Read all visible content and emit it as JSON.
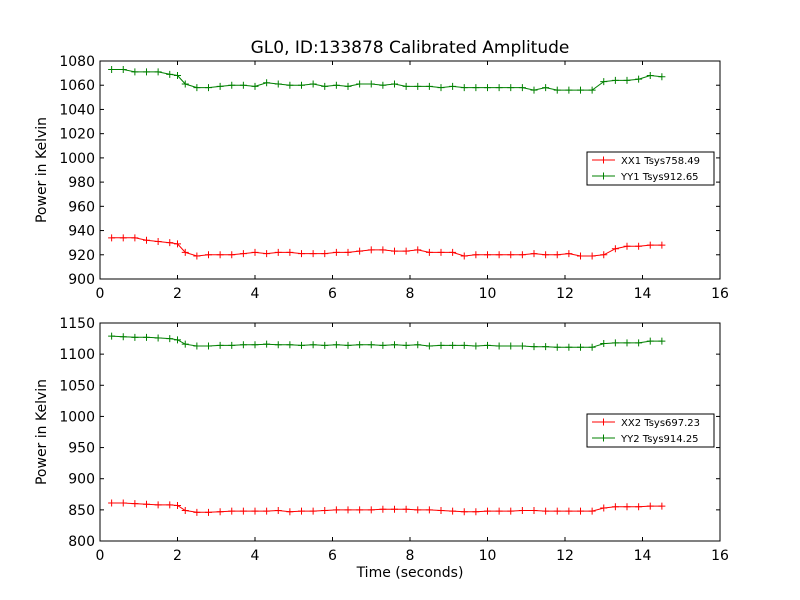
{
  "chart_data": [
    {
      "type": "line",
      "title": "GL0, ID:133878 Calibrated Amplitude",
      "xlabel": "",
      "ylabel": "Power in Kelvin",
      "xlim": [
        0,
        16
      ],
      "ylim": [
        900,
        1080
      ],
      "xticks": [
        "0",
        "2",
        "4",
        "6",
        "8",
        "10",
        "12",
        "14",
        "16"
      ],
      "yticks": [
        "900",
        "920",
        "940",
        "960",
        "980",
        "1000",
        "1020",
        "1040",
        "1060",
        "1080"
      ],
      "grid": false,
      "legend_position": "center-right",
      "x": [
        0.3,
        0.6,
        0.9,
        1.2,
        1.5,
        1.8,
        2.0,
        2.2,
        2.5,
        2.8,
        3.1,
        3.4,
        3.7,
        4.0,
        4.3,
        4.6,
        4.9,
        5.2,
        5.5,
        5.8,
        6.1,
        6.4,
        6.7,
        7.0,
        7.3,
        7.6,
        7.9,
        8.2,
        8.5,
        8.8,
        9.1,
        9.4,
        9.7,
        10.0,
        10.3,
        10.6,
        10.9,
        11.2,
        11.5,
        11.8,
        12.1,
        12.4,
        12.7,
        13.0,
        13.3,
        13.6,
        13.9,
        14.2,
        14.5
      ],
      "series": [
        {
          "name": "XX1 Tsys758.49",
          "color": "#ff0000",
          "values": [
            934,
            934,
            934,
            932,
            931,
            930,
            929,
            922,
            919,
            920,
            920,
            920,
            921,
            922,
            921,
            922,
            922,
            921,
            921,
            921,
            922,
            922,
            923,
            924,
            924,
            923,
            923,
            924,
            922,
            922,
            922,
            919,
            920,
            920,
            920,
            920,
            920,
            921,
            920,
            920,
            921,
            919,
            919,
            920,
            925,
            927,
            927,
            928,
            928
          ]
        },
        {
          "name": "YY1 Tsys912.65",
          "color": "#008000",
          "values": [
            1073,
            1073,
            1071,
            1071,
            1071,
            1069,
            1068,
            1061,
            1058,
            1058,
            1059,
            1060,
            1060,
            1059,
            1062,
            1061,
            1060,
            1060,
            1061,
            1059,
            1060,
            1059,
            1061,
            1061,
            1060,
            1061,
            1059,
            1059,
            1059,
            1058,
            1059,
            1058,
            1058,
            1058,
            1058,
            1058,
            1058,
            1056,
            1058,
            1056,
            1056,
            1056,
            1056,
            1063,
            1064,
            1064,
            1065,
            1068,
            1067
          ]
        }
      ]
    },
    {
      "type": "line",
      "title": "",
      "xlabel": "Time (seconds)",
      "ylabel": "Power in Kelvin",
      "xlim": [
        0,
        16
      ],
      "ylim": [
        800,
        1150
      ],
      "xticks": [
        "0",
        "2",
        "4",
        "6",
        "8",
        "10",
        "12",
        "14",
        "16"
      ],
      "yticks": [
        "800",
        "850",
        "900",
        "950",
        "1000",
        "1050",
        "1100",
        "1150"
      ],
      "grid": false,
      "legend_position": "center-right",
      "x": [
        0.3,
        0.6,
        0.9,
        1.2,
        1.5,
        1.8,
        2.0,
        2.2,
        2.5,
        2.8,
        3.1,
        3.4,
        3.7,
        4.0,
        4.3,
        4.6,
        4.9,
        5.2,
        5.5,
        5.8,
        6.1,
        6.4,
        6.7,
        7.0,
        7.3,
        7.6,
        7.9,
        8.2,
        8.5,
        8.8,
        9.1,
        9.4,
        9.7,
        10.0,
        10.3,
        10.6,
        10.9,
        11.2,
        11.5,
        11.8,
        12.1,
        12.4,
        12.7,
        13.0,
        13.3,
        13.6,
        13.9,
        14.2,
        14.5
      ],
      "series": [
        {
          "name": "XX2 Tsys697.23",
          "color": "#ff0000",
          "values": [
            861,
            861,
            860,
            859,
            858,
            858,
            857,
            849,
            846,
            846,
            847,
            848,
            848,
            848,
            848,
            849,
            847,
            848,
            848,
            849,
            850,
            850,
            850,
            850,
            851,
            851,
            851,
            850,
            850,
            849,
            848,
            847,
            847,
            848,
            848,
            848,
            849,
            849,
            848,
            848,
            848,
            848,
            848,
            853,
            855,
            855,
            855,
            856,
            856
          ]
        },
        {
          "name": "YY2 Tsys914.25",
          "color": "#008000",
          "values": [
            1129,
            1128,
            1127,
            1127,
            1126,
            1125,
            1123,
            1116,
            1113,
            1113,
            1114,
            1114,
            1115,
            1115,
            1116,
            1115,
            1115,
            1114,
            1115,
            1114,
            1115,
            1114,
            1115,
            1115,
            1114,
            1115,
            1114,
            1115,
            1113,
            1114,
            1114,
            1114,
            1113,
            1114,
            1113,
            1113,
            1113,
            1112,
            1112,
            1111,
            1111,
            1111,
            1111,
            1117,
            1118,
            1118,
            1118,
            1121,
            1121
          ]
        }
      ]
    }
  ]
}
